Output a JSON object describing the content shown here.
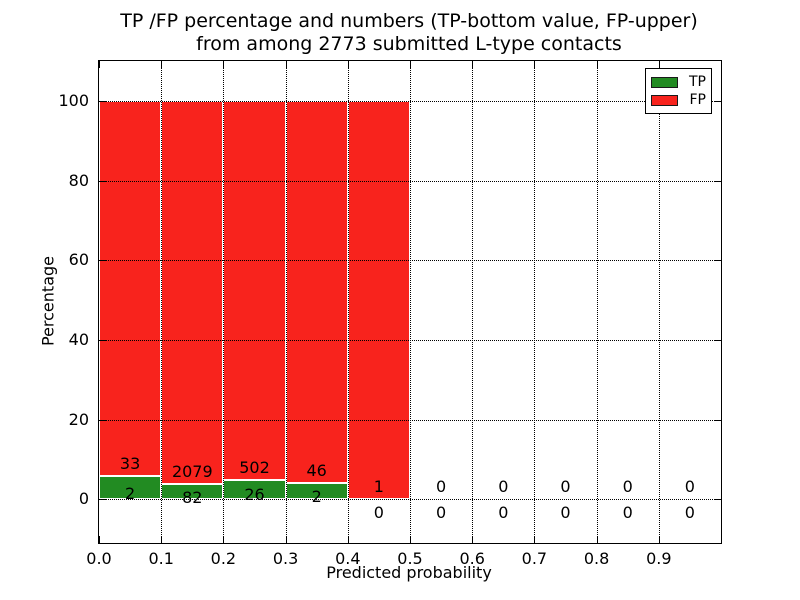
{
  "figure": {
    "title_line1": "TP /FP percentage and numbers (TP-bottom value, FP-upper)",
    "title_line2": "from among 2773 submitted L-type contacts"
  },
  "chart_data": {
    "type": "bar",
    "stacked": true,
    "title": "TP /FP percentage and numbers (TP-bottom value, FP-upper) from among 2773 submitted L-type contacts",
    "xlabel": "Predicted probability",
    "ylabel": "Percentage",
    "bin_starts": [
      0.0,
      0.1,
      0.2,
      0.3,
      0.4,
      0.5,
      0.6,
      0.7,
      0.8,
      0.9
    ],
    "bin_width": 0.1,
    "series": [
      {
        "name": "TP",
        "color": "#228b22",
        "counts": [
          2,
          82,
          26,
          2,
          0,
          0,
          0,
          0,
          0,
          0
        ]
      },
      {
        "name": "FP",
        "color": "#f8231d",
        "counts": [
          33,
          2079,
          502,
          46,
          1,
          0,
          0,
          0,
          0,
          0
        ]
      }
    ],
    "tp_percent_by_bin": [
      5.71,
      3.79,
      4.92,
      4.17,
      0.0,
      null,
      null,
      null,
      null,
      null
    ],
    "fp_percent_by_bin": [
      94.29,
      96.21,
      95.08,
      95.83,
      100.0,
      null,
      null,
      null,
      null,
      null
    ],
    "total_submitted_contacts": 2773,
    "xticks": [
      "0.0",
      "0.1",
      "0.2",
      "0.3",
      "0.4",
      "0.5",
      "0.6",
      "0.7",
      "0.8",
      "0.9"
    ],
    "yticks": [
      "0",
      "20",
      "40",
      "60",
      "80",
      "100"
    ],
    "xlim": [
      0.0,
      1.0
    ],
    "ylim": [
      -11,
      110
    ],
    "grid": {
      "style": "dotted",
      "color": "#000000"
    },
    "bar_edge_color": "#ffffff",
    "legend": {
      "position": "upper right",
      "entries": [
        {
          "label": "TP",
          "color": "#228b22"
        },
        {
          "label": "FP",
          "color": "#f8231d"
        }
      ]
    }
  }
}
